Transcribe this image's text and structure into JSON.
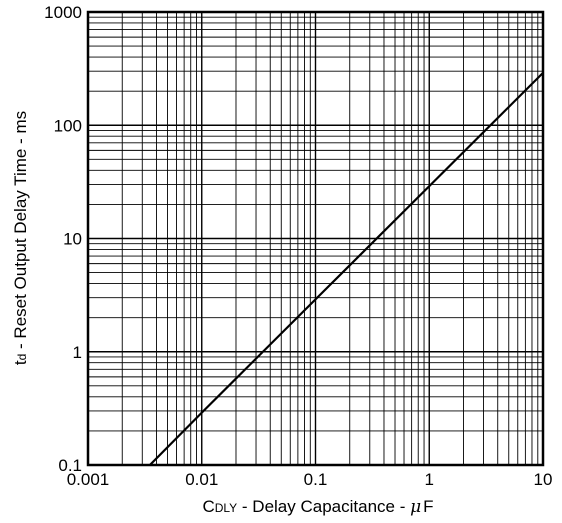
{
  "chart_data": {
    "type": "line",
    "title": "",
    "xlabel": "CDLY - Delay Capacitance - μF",
    "xlabel_parts": {
      "main": "C",
      "subscript": "DLY",
      "rest": " - Delay Capacitance - ",
      "mu": "μ",
      "unit": "F"
    },
    "ylabel": "td - Reset Output Delay Time - ms",
    "ylabel_parts": {
      "main": "t",
      "subscript": "d",
      "rest": " - Reset Output Delay Time - ms"
    },
    "x_scale": "log",
    "y_scale": "log",
    "xlim": [
      0.001,
      10
    ],
    "ylim": [
      0.1,
      1000
    ],
    "x_ticks": [
      0.001,
      0.01,
      0.1,
      1,
      10
    ],
    "x_tick_labels": [
      "0.001",
      "0.01",
      "0.1",
      "1",
      "10"
    ],
    "y_ticks": [
      0.1,
      1,
      10,
      100,
      1000
    ],
    "y_tick_labels": [
      "0.1",
      "1",
      "10",
      "100",
      "1000"
    ],
    "grid": true,
    "minor_grid": true,
    "legend": "none",
    "line_color": "#000000",
    "series": [
      {
        "x": [
          0.0035,
          0.01,
          0.1,
          1,
          10
        ],
        "y": [
          0.1,
          0.29,
          2.9,
          29,
          290
        ]
      }
    ]
  }
}
